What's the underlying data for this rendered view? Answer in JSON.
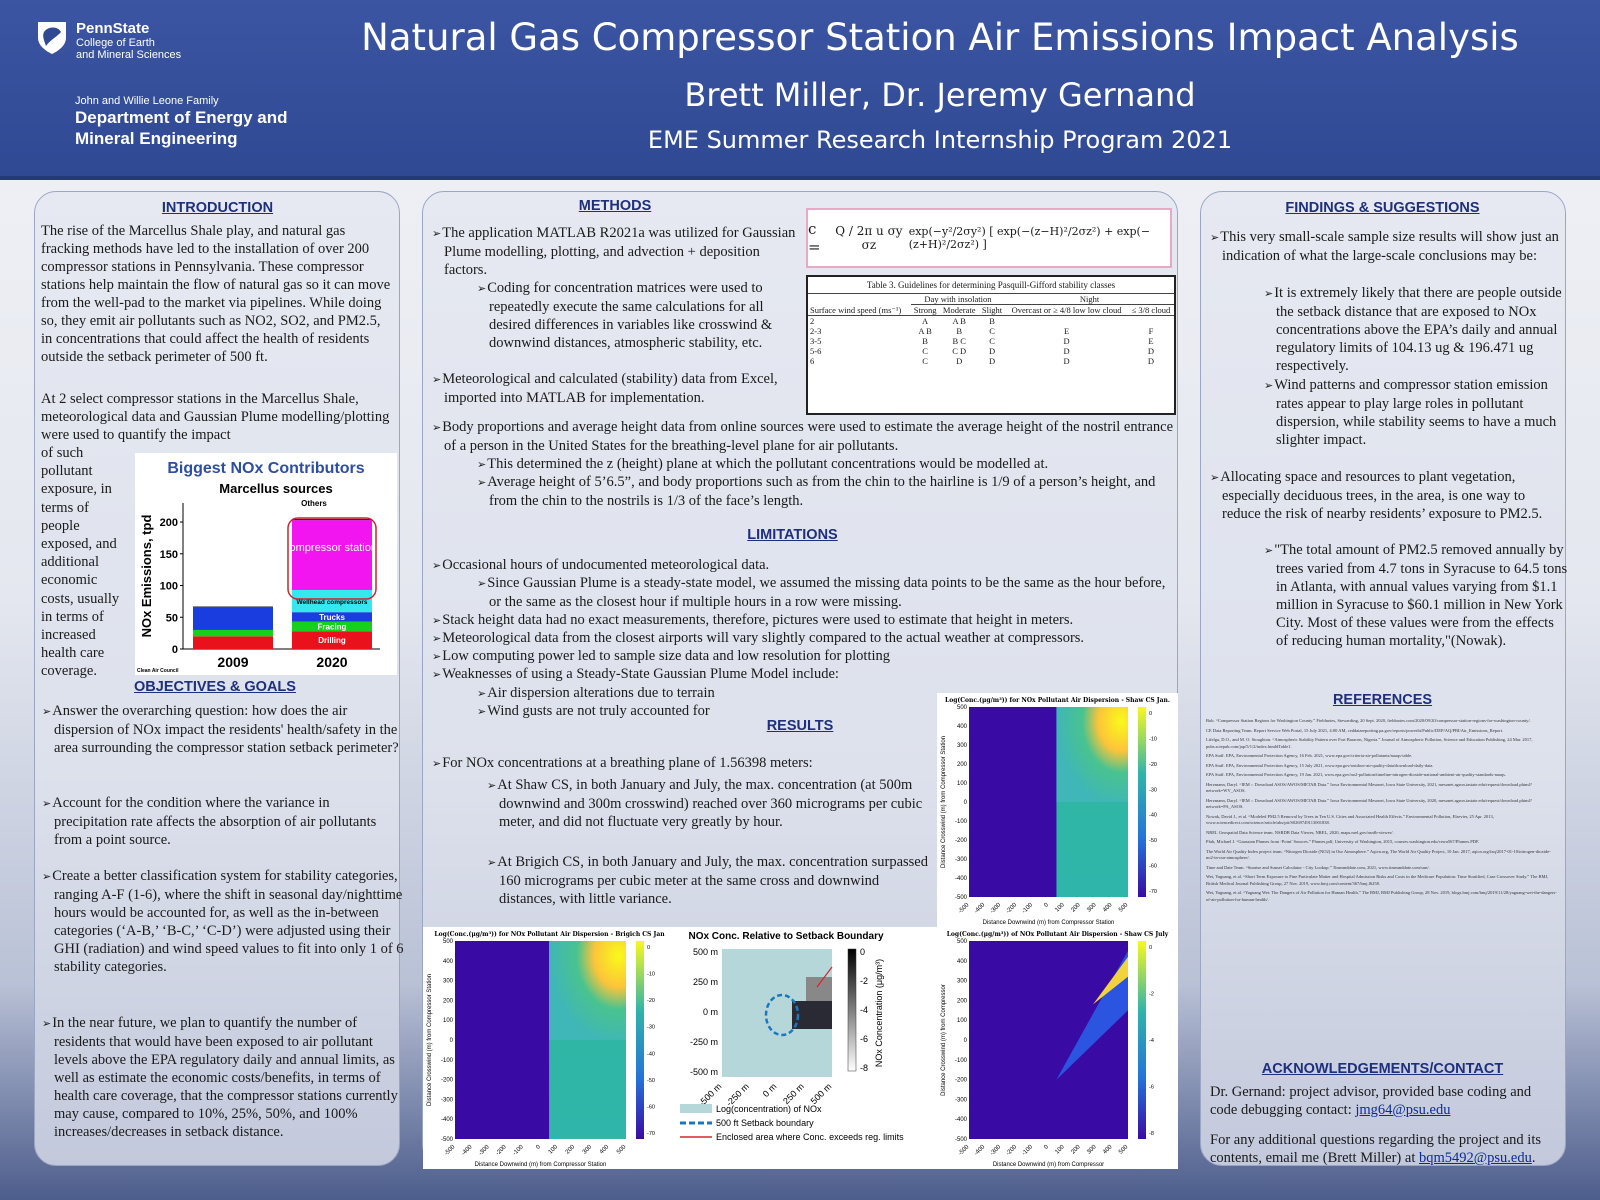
{
  "header": {
    "psu_name": "PennState",
    "college_line1": "College of Earth",
    "college_line2": "and Mineral Sciences",
    "dept_small": "John and Willie Leone Family",
    "dept_line1": "Department of Energy and",
    "dept_line2": "Mineral Engineering",
    "title": "Natural Gas Compressor Station Air Emissions Impact Analysis",
    "authors": "Brett Miller, Dr. Jeremy Gernand",
    "program": "EME Summer Research Internship Program 2021",
    "colors": {
      "header_bg": "#3b55a3",
      "section_title": "#1d2f7d"
    }
  },
  "introduction": {
    "heading": "INTRODUCTION",
    "p1": "The rise of the Marcellus Shale play, and natural gas fracking methods have led to the installation of over 200 compressor stations in Pennsylvania. These compressor stations help maintain the flow of natural gas so it can move from the well-pad to the market via pipelines. While doing so, they emit air pollutants such as NO2, SO2, and PM2.5, in concentrations that could affect the health of residents outside the setback perimeter of 500 ft.",
    "p2_full": "At 2 select compressor stations in the Marcellus Shale, meteorological data and Gaussian Plume modelling/plotting were used to quantify the impact",
    "p2_wrap": [
      "of such",
      "pollutant",
      "exposure, in",
      "terms of",
      "people",
      "exposed, and",
      "additional",
      "economic",
      "costs, usually",
      "in terms of",
      "increased",
      "health care",
      "coverage."
    ]
  },
  "nox_chart": {
    "title": "Biggest NOx Contributors",
    "subtitle": "Marcellus sources",
    "ylabel": "NOx Emissions, tpd",
    "source": "Clean Air Council",
    "annot_others": "Others",
    "annot_compressor": "Compressor stations",
    "label_wellhead": "Wellhead compressors",
    "label_trucks": "Trucks",
    "label_fracing": "Fracing",
    "label_drilling": "Drilling"
  },
  "chart_data": [
    {
      "type": "bar",
      "title": "Biggest NOx Contributors",
      "subtitle": "Marcellus sources",
      "ylabel": "NOx Emissions, tpd",
      "ylim": [
        0,
        230
      ],
      "yticks": [
        0,
        50,
        100,
        150,
        200
      ],
      "categories": [
        "2009",
        "2020"
      ],
      "series": [
        {
          "name": "Drilling",
          "color": "#e8111c",
          "values": [
            20,
            28
          ]
        },
        {
          "name": "Fracing",
          "color": "#16d01d",
          "values": [
            10,
            15
          ]
        },
        {
          "name": "Trucks",
          "color": "#1a3de0",
          "values": [
            35,
            15
          ]
        },
        {
          "name": "Wellhead compressors",
          "color": "#35e8f0",
          "values": [
            0,
            35
          ]
        },
        {
          "name": "Compressor stations",
          "color": "#f315ef",
          "values": [
            0,
            110
          ]
        },
        {
          "name": "Others",
          "color": "#2a2a2a",
          "values": [
            2,
            2
          ]
        }
      ]
    },
    {
      "type": "heatmap",
      "title": "Log(Conc.(μg/m³)) for NOx Pollutant Air Dispersion - Shaw CS Jan.",
      "xlabel": "Distance Downwind (m) from Compressor Station",
      "ylabel": "Distance Crosswind (m) from Compressor Station",
      "xticks": [
        -500,
        -400,
        -300,
        -200,
        -100,
        0,
        100,
        200,
        300,
        400,
        500
      ],
      "yticks": [
        500,
        400,
        300,
        200,
        100,
        0,
        -100,
        -200,
        -300,
        -400,
        -500
      ],
      "cbar_ticks": [
        0,
        -10,
        -20,
        -30,
        -40,
        -50,
        -60,
        -70
      ]
    },
    {
      "type": "heatmap",
      "title": "Log(Conc.(μg/m³)) for NOx Pollutant Air Dispersion - Brigich CS Jan",
      "xlabel": "Distance Downwind (m) from Compressor Station",
      "ylabel": "Distance Crosswind (m) from Compressor Station",
      "xticks": [
        -500,
        -400,
        -300,
        -200,
        -100,
        0,
        100,
        200,
        300,
        400,
        500
      ],
      "yticks": [
        500,
        400,
        300,
        200,
        100,
        0,
        -100,
        -200,
        -300,
        -400,
        -500
      ],
      "cbar_ticks": [
        0,
        -10,
        -20,
        -30,
        -40,
        -50,
        -60,
        -70
      ]
    },
    {
      "type": "heatmap",
      "title": "NOx Conc. Relative to Setback Boundary",
      "xticks": [
        "-500 m",
        "-250 m",
        "0 m",
        "250 m",
        "500 m"
      ],
      "yticks": [
        "500 m",
        "250 m",
        "0 m",
        "-250 m",
        "-500 m"
      ],
      "cbar_label": "NOx Concentration (μg/m³)",
      "cbar_ticks": [
        0,
        -2,
        -4,
        -6,
        -8
      ],
      "legend": [
        "Log(concentration) of NOx",
        "500 ft Setback boundary",
        "Enclosed area where Conc. exceeds reg. limits"
      ]
    },
    {
      "type": "heatmap",
      "title": "Log(Conc.(μg/m³)) of NOx Pollutant Air Dispersion - Shaw CS July",
      "xlabel": "Distance Downwind (m) from Compressor",
      "ylabel": "Distance Crosswind (m) from Compressor",
      "xticks": [
        -500,
        -400,
        -300,
        -200,
        -100,
        0,
        100,
        200,
        300,
        400,
        500
      ],
      "yticks": [
        500,
        400,
        300,
        200,
        100,
        0,
        -100,
        -200,
        -300,
        -400,
        -500
      ],
      "cbar_ticks": [
        0,
        -2,
        -4,
        -6,
        -8
      ]
    }
  ],
  "objectives": {
    "heading": "OBJECTIVES & GOALS",
    "b1": "Answer the overarching question: how does the air dispersion of NOx impact the residents' health/safety in the area surrounding the compressor station setback perimeter?",
    "b2": "Account for the condition where the variance in precipitation rate affects the absorption of air pollutants from a point source.",
    "b3": "Create a better classification system for stability categories, ranging A-F (1-6), where the shift in seasonal day/nighttime hours would be accounted for, as well as the in-between categories (‘A-B,’ ‘B-C,’ ‘C-D’) were adjusted using their GHI (radiation) and wind speed values to fit into only 1 of 6 stability categories.",
    "b4": "In the near future, we plan to quantify the number of residents that would have been exposed to air pollutant levels above the EPA regulatory daily and annual limits, as well as estimate the economic costs/benefits, in terms of health care coverage, that the compressor stations currently may cause, compared to 10%, 25%, 50%, and 100% increases/decreases in setback distance."
  },
  "methods": {
    "heading": "METHODS",
    "b1": "The application MATLAB R2021a was utilized for Gaussian Plume modelling, plotting, and advection + deposition factors.",
    "b1a": "Coding for concentration matrices were used to repeatedly execute the same calculations for all desired differences in variables like crosswind & downwind distances, atmospheric stability, etc.",
    "b2": "Meteorological and calculated (stability) data from Excel, imported into MATLAB for implementation.",
    "b3": "Body proportions and average height data from online sources were used to estimate the average height of the nostril entrance of a person in the United States for the breathing-level plane for air pollutants.",
    "b3a": "This determined the z (height) plane at which the pollutant concentrations would be modelled at.",
    "b3b": "Average height of 5’6.5”, and body proportions such as from the chin to the hairline is 1/9 of a person’s height, and from the chin to the nostrils is 1/3 of the face’s length.",
    "formula_c": "c =",
    "formula_frac": "Q / 2π u σy σz",
    "formula_rest": "exp(−y²/2σy²) [ exp(−(z−H)²/2σz²) + exp(−(z+H)²/2σz²) ]",
    "table": {
      "caption": "Table 3.  Guidelines for determining Pasquill-Gifford stability classes",
      "group_day": "Day with insolation",
      "group_night": "Night",
      "col0": "Surface wind speed (ms⁻¹)",
      "cols": [
        "Strong",
        "Moderate",
        "Slight",
        "Overcast or ≥ 4/8 low low cloud",
        "≤ 3/8 cloud"
      ],
      "rows": [
        [
          "2",
          "A",
          "A B",
          "B",
          "",
          ""
        ],
        [
          "2-3",
          "A B",
          "B",
          "C",
          "E",
          "F"
        ],
        [
          "3-5",
          "B",
          "B C",
          "C",
          "D",
          "E"
        ],
        [
          "5-6",
          "C",
          "C D",
          "D",
          "D",
          "D"
        ],
        [
          "6",
          "C",
          "D",
          "D",
          "D",
          "D"
        ]
      ]
    }
  },
  "limitations": {
    "heading": "LIMITATIONS",
    "b1": "Occasional hours of undocumented meteorological data.",
    "b1a": "Since Gaussian Plume is a steady-state model, we assumed the missing data points to be the same as the hour before, or the same as the closest hour if multiple hours in a row were missing.",
    "b2": "Stack height data had no exact measurements, therefore, pictures were used to estimate that height in meters.",
    "b3": "Meteorological data from the closest airports will vary slightly compared to the actual weather at compressors.",
    "b4": "Low computing power led to sample size data and low resolution for plotting",
    "b5": "Weaknesses of using a Steady-State Gaussian Plume Model include:",
    "b5a": "Air dispersion alterations due to terrain",
    "b5b": "Wind gusts are not truly accounted for"
  },
  "results": {
    "heading": "RESULTS",
    "b1": "For NOx concentrations at a breathing plane of 1.56398 meters:",
    "b1a": "At Shaw CS, in both January and July, the max. concentration (at 500m downwind and 300m crosswind) reached over 360 micrograms per cubic meter, and did not fluctuate very greatly by hour.",
    "b1b": "At Brigich CS, in both January and July, the max.  concentration surpassed 160 micrograms per cubic meter at the same cross and downwind distances, with little variance."
  },
  "findings": {
    "heading": "FINDINGS & SUGGESTIONS",
    "b1": "This very small-scale sample size results will show just an indication of what the large-scale conclusions may be:",
    "b1a": "It is extremely likely that there are people outside the setback distance that are exposed to NOx concentrations above the EPA’s daily and annual regulatory limits of 104.13 ug & 196.471 ug respectively.",
    "b1b": "Wind patterns and compressor station emission rates appear to play large roles in pollutant dispersion, while stability seems to have a much slighter impact.",
    "b2": "Allocating space and resources to plant vegetation, especially deciduous trees, in the area, is one way to reduce the risk of nearby residents’ exposure to PM2.5.",
    "b2a": "\"The total amount of PM2.5 removed annually by trees varied from 4.7 tons in Syracuse to 64.5 tons in Atlanta, with annual values varying from $1.1 million in Syracuse to $60.1 million in New York City. Most of these values were from the effects of reducing human mortality,\"(Nowak)."
  },
  "references": {
    "heading": "REFERENCES",
    "items": [
      "Bob. “Compressor Station Regions for Washington County.” Fieldnotes, Stewarding, 20 Sept. 2020, fieldnotes.com/2020/09/20/compressor-station-regions-for-washington-county/.",
      "CE Data Reporting Team. Report Service Web Portal, 15 July 2021, 4:00 AM, ceddatareporting.pa.gov/reports/powerbi/Public/DEP/AQ/PBI/Air_Emissions_Report.",
      "Lifelga, D.O., and M. O. Stoughton. “Atmospheric Stability Pattern over Fort Baracen, Nigeria.” Journal of Atmospheric Pollution, Science and Education Publishing, 24 Mar. 2017, pubs.sciepub.com/jap/5/1/2/index.html#Table1.",
      "EPA Staff. EPA, Environmental Protection Agency, 16 Feb. 2021, www.epa.gov/criteria-air-pollutants/naaqs-table.",
      "EPA Staff. EPA, Environmental Protection Agency, 15 July 2021, www.epa.gov/outdoor-air-quality-data/download-daily-data.",
      "EPA Staff. EPA, Environmental Protection Agency, 19 Jan. 2021, www.epa.gov/no2-pollution/timeline-nitrogen-dioxide-national-ambient-air-quality-standards-naaqs.",
      "Herzmann, Daryl. “IEM :: Download ASOS/AWOS/METAR Data.” Iowa Environmental Mesonet, Iowa State University, 2021, mesonet.agron.iastate.edu/request/download.phtml?network=WV_ASOS.",
      "Herzmann, Daryl. “IEM :: Download ASOS/AWOS/METAR Data.” Iowa Environmental Mesonet, Iowa State University, 2020, mesonet.agron.iastate.edu/request/download.phtml?network=PA_ASOS.",
      "Nowak, David J., et al. “Modeled PM2.5 Removal by Trees in Ten U.S. Cities and Associated Health Effects.” Environmental Pollution, Elsevier, 25 Apr. 2013, www.sciencedirect.com/science/article/abs/pii/S0269749113001838.",
      "NREL Geospatial Data Science team. NSRDB Data Viewer, NREL, 2020, maps.nrel.gov/nsrdb-viewer/.",
      "Pfab, Michael J. “Gaussian Plumes from ‘Point’ Sources.” Plumes.pdf, University of Washington, 2015, courses.washington.edu/cewa567/Plumes.PDF.",
      "The World Air Quality Index project team. “Nitrogen Dioxide (NO2) in Our Atmosphere.” Aqicn.org, The World Air Quality Project, 10 Jan. 2017, aqicn.org/faq/2017-01-10/nitrogen-dioxide-no2-in-our-atmosphere/.",
      "Time and Date Team. “Sunrise and Sunset Calculator - City Lookup.” Timeanddate.com, 2021, www.timeanddate.com/sun/.",
      "Wei, Yaguang, et al. “Short Term Exposure to Fine Particulate Matter and Hospital Admission Risks and Costs in the Medicare Population: Time Stratified, Case Crossover Study.” The BMJ, British Medical Journal Publishing Group, 27 Nov. 2019, www.bmj.com/content/367/bmj.l6258.",
      "Wei, Yaguang, et al. “Yaguang Wei: The Dangers of Air Pollution for Human Health.” The BMJ, BMJ Publishing Group, 28 Nov. 2019, blogs.bmj.com/bmj/2019/11/28/yaguang-wei-the-dangers-of-air-pollution-for-human-health/."
    ]
  },
  "acknowledgements": {
    "heading": "ACKNOWLEDGEMENTS/CONTACT",
    "p1": "Dr. Gernand: project advisor,  provided base coding and code debugging contact: ",
    "email1": "jmg64@psu.edu",
    "p2": "For any additional questions regarding the project and its contents, email me (Brett Miller) at ",
    "email2": "bqm5492@psu.edu",
    "p2_end": "."
  }
}
